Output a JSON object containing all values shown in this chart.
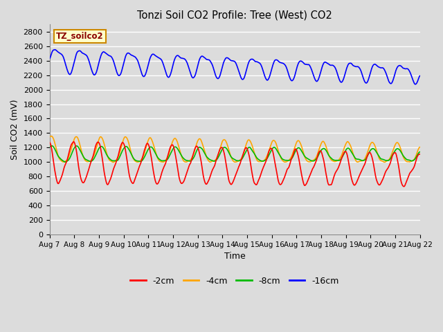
{
  "title": "Tonzi Soil CO2 Profile: Tree (West) CO2",
  "xlabel": "Time",
  "ylabel": "Soil CO2 (mV)",
  "ylim": [
    0,
    2900
  ],
  "yticks": [
    0,
    200,
    400,
    600,
    800,
    1000,
    1200,
    1400,
    1600,
    1800,
    2000,
    2200,
    2400,
    2600,
    2800
  ],
  "bg_color": "#dcdcdc",
  "plot_bg_color": "#dcdcdc",
  "grid_color": "white",
  "annotation_text": "TZ_soilco2",
  "annotation_color": "#8B0000",
  "annotation_bg": "#ffffcc",
  "annotation_border": "#cc8800",
  "legend_entries": [
    "-2cm",
    "-4cm",
    "-8cm",
    "-16cm"
  ],
  "legend_colors": [
    "#ff0000",
    "#ffa500",
    "#00bb00",
    "#0000ff"
  ],
  "line_width": 1.2,
  "figsize": [
    6.4,
    4.8
  ],
  "dpi": 100
}
